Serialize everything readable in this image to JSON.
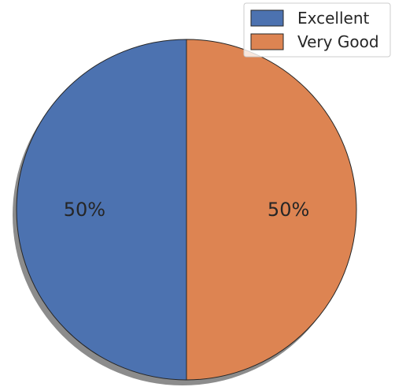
{
  "chart_data": {
    "type": "pie",
    "labels": [
      "Excellent",
      "Very Good"
    ],
    "values": [
      50,
      50
    ],
    "percent_labels": [
      "50%",
      "50%"
    ],
    "colors": [
      "#4c72b0",
      "#dd8452"
    ],
    "start_angle_deg": 90,
    "direction": "counterclockwise",
    "shadow": true,
    "title": "",
    "legend": {
      "placement": "top-right",
      "entries": [
        "Excellent",
        "Very Good"
      ]
    }
  }
}
